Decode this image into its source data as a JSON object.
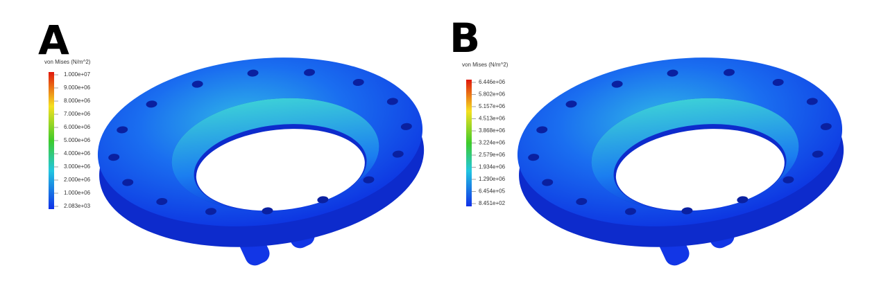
{
  "panels": [
    {
      "label": "A",
      "legend": {
        "title": "von Mises (N/m^2)",
        "ticks": [
          "1.000e+07",
          "9.000e+06",
          "8.000e+06",
          "7.000e+06",
          "6.000e+06",
          "5.000e+06",
          "4.000e+06",
          "3.000e+06",
          "2.000e+06",
          "1.000e+06",
          "2.083e+03"
        ]
      }
    },
    {
      "label": "B",
      "legend": {
        "title": "von Mises (N/m^2)",
        "ticks": [
          "6.446e+06",
          "5.802e+06",
          "5.157e+06",
          "4.513e+06",
          "3.868e+06",
          "3.224e+06",
          "2.579e+06",
          "1.934e+06",
          "1.290e+06",
          "6.454e+05",
          "8.451e+02"
        ]
      }
    }
  ]
}
